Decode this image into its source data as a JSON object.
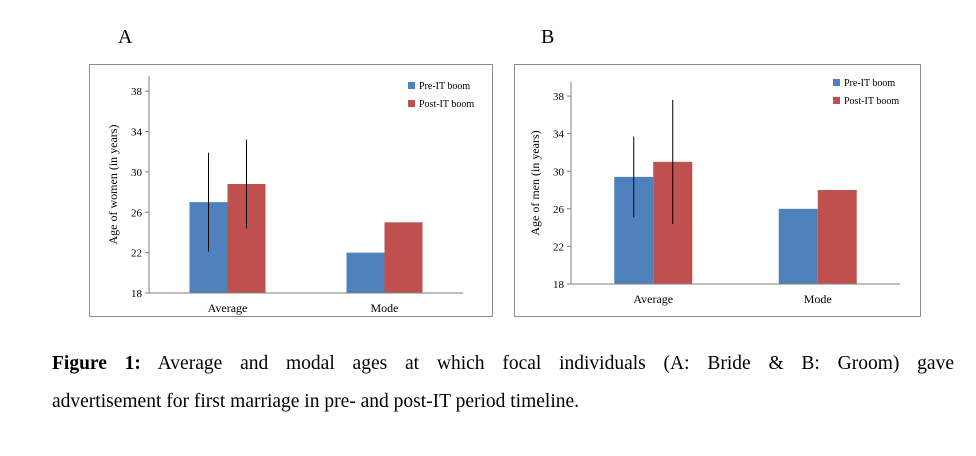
{
  "panels": [
    {
      "letter": "A"
    },
    {
      "letter": "B"
    }
  ],
  "chart_data": [
    {
      "type": "bar",
      "categories": [
        "Average",
        "Mode"
      ],
      "series": [
        {
          "name": "Pre-IT boom",
          "values": [
            27.0,
            22.0
          ],
          "error": [
            4.9,
            null
          ]
        },
        {
          "name": "Post-IT boom",
          "values": [
            28.8,
            25.0
          ],
          "error": [
            4.4,
            null
          ]
        }
      ],
      "xlabel": "",
      "ylabel": "Age of women  (in years)",
      "ylim": [
        18,
        39.5
      ],
      "yticks": [
        18,
        22,
        26,
        30,
        34,
        38
      ],
      "legend": "top-right",
      "grid": false,
      "colors": [
        "#4f81bd",
        "#c0504d"
      ]
    },
    {
      "type": "bar",
      "categories": [
        "Average",
        "Mode"
      ],
      "series": [
        {
          "name": "Pre-IT boom",
          "values": [
            29.4,
            26.0
          ],
          "error": [
            4.3,
            null
          ]
        },
        {
          "name": "Post-IT boom",
          "values": [
            31.0,
            28.0
          ],
          "error": [
            6.6,
            null
          ]
        }
      ],
      "xlabel": "",
      "ylabel": "Age of men  (in years)",
      "ylim": [
        18,
        39.5
      ],
      "yticks": [
        18,
        22,
        26,
        30,
        34,
        38
      ],
      "legend": "top-right",
      "grid": false,
      "colors": [
        "#4f81bd",
        "#c0504d"
      ]
    }
  ],
  "caption": {
    "label": "Figure 1:",
    "line1": "Average and modal ages at which focal individuals (A: Bride & B: Groom) gave",
    "line2": "advertisement for first marriage in pre- and post-IT period timeline."
  }
}
